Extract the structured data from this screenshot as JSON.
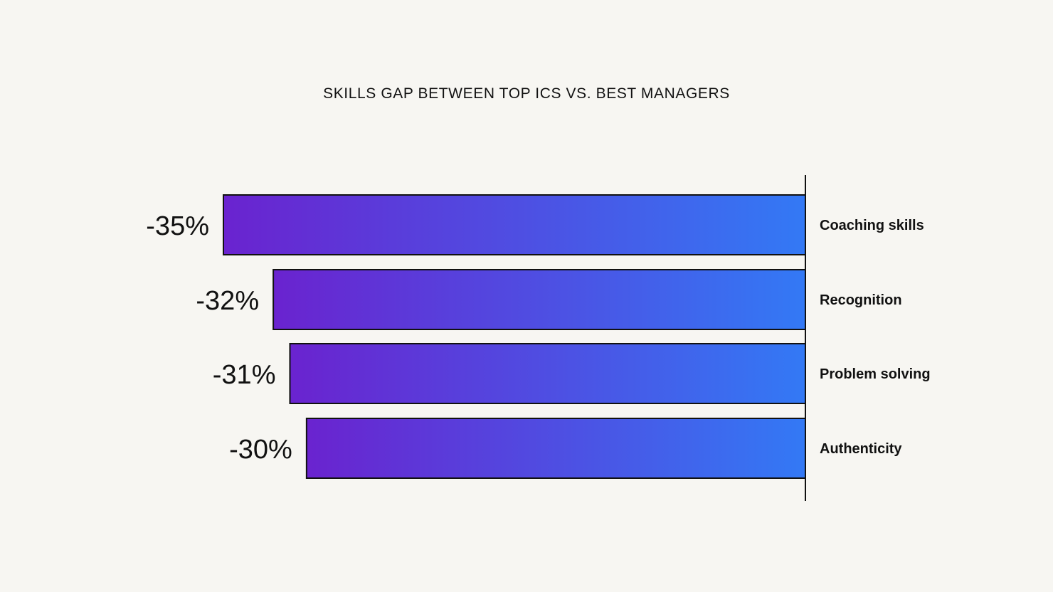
{
  "chart_data": {
    "type": "bar",
    "orientation": "horizontal",
    "title": "SKILLS GAP BETWEEN TOP ICS VS. BEST MANAGERS",
    "categories": [
      "Coaching skills",
      "Recognition",
      "Problem solving",
      "Authenticity"
    ],
    "values": [
      -35,
      -32,
      -31,
      -30
    ],
    "value_labels": [
      "-35%",
      "-32%",
      "-31%",
      "-30%"
    ],
    "value_unit": "%",
    "xlim": [
      -35,
      0
    ],
    "grid": false,
    "legend": "none",
    "colors": {
      "bar_gradient_start": "#6a23cf",
      "bar_gradient_end": "#3379f5",
      "bar_outline": "#111111",
      "axis": "#111111",
      "background": "#f7f6f2"
    }
  }
}
